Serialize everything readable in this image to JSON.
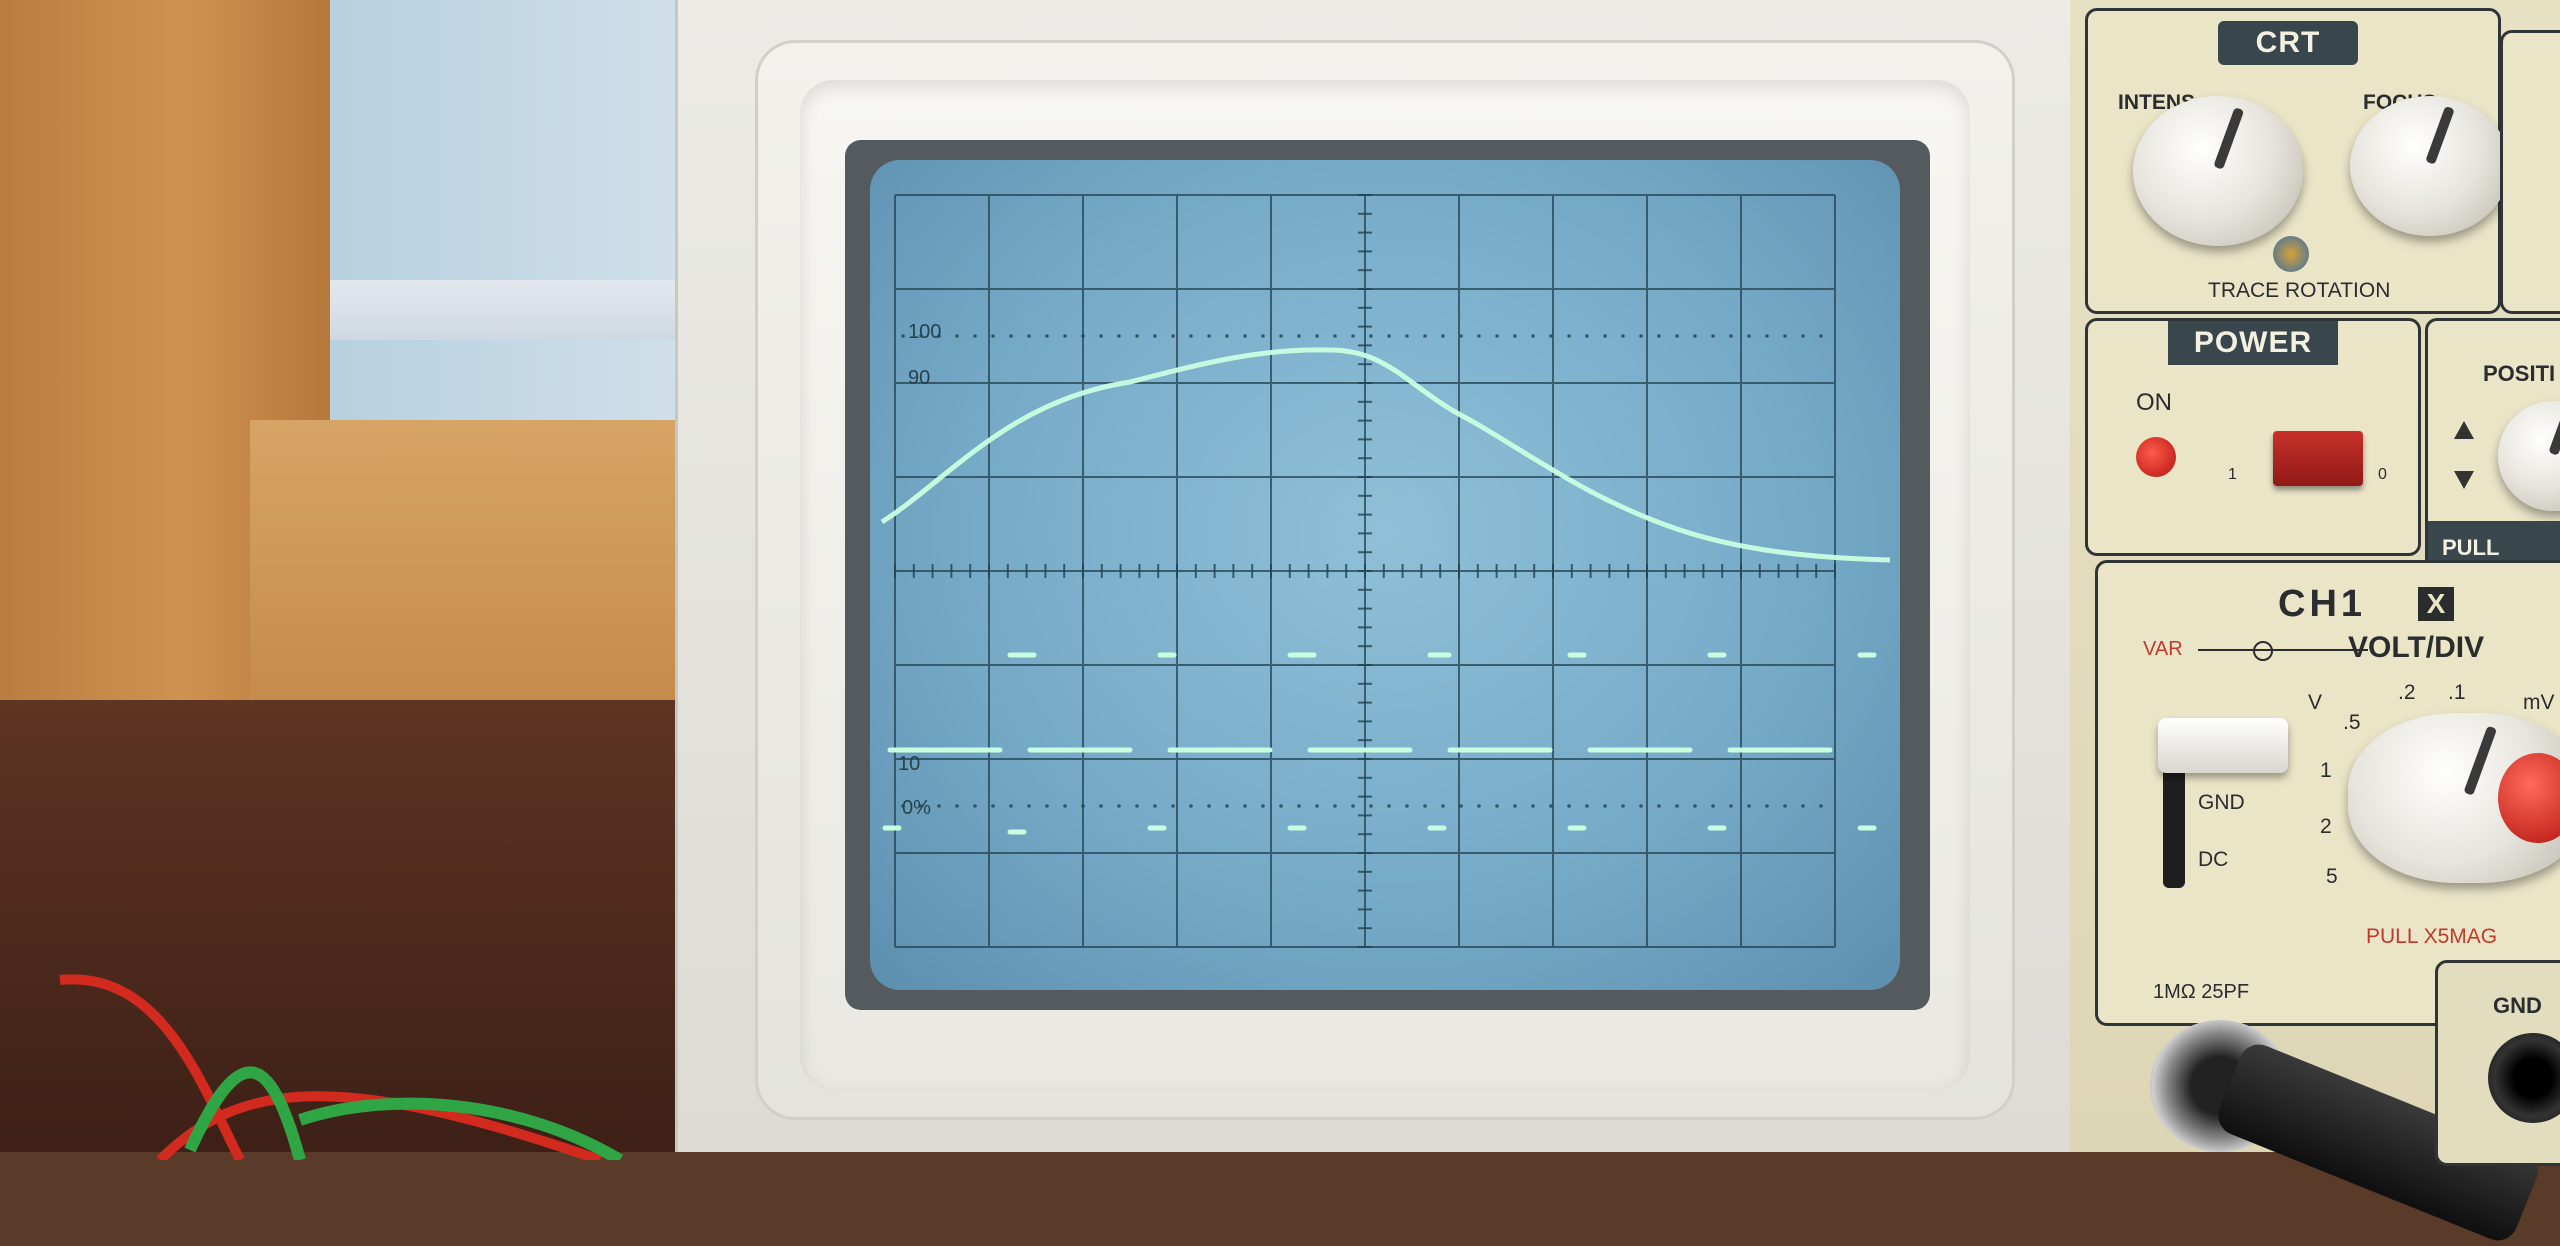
{
  "screen": {
    "graticule_labels": {
      "top_percent": "100",
      "upper_percent": "90",
      "lower_percent": "10",
      "bottom_percent": "0%"
    }
  },
  "panel": {
    "crt": {
      "title": "CRT",
      "intensity_label": "INTENS",
      "focus_label": "FOCUS",
      "trace_rotation_label": "TRACE ROTATION"
    },
    "power": {
      "title": "POWER",
      "on_label": "ON",
      "pos_1": "1",
      "pos_0": "0"
    },
    "position": {
      "title": "POSITI",
      "pull_label": "PULL"
    },
    "ch1": {
      "title": "CH1",
      "x_badge": "X",
      "var_label": "VAR",
      "volt_div_label": "VOLT/DIV",
      "scale_v": "V",
      "scale_mv": "mV",
      "scale_values": [
        ".5",
        ".2",
        ".1",
        "1",
        "2",
        "5"
      ],
      "gnd_label": "GND",
      "dc_label": "DC",
      "pull_x5mag_label": "PULL X5MAG",
      "input_spec": "1MΩ 25PF"
    },
    "gnd_terminal_label": "GND"
  },
  "colors": {
    "phosphor": "#c8ffe0",
    "panel_title_bg": "#39464c",
    "var_red": "#c0392b"
  }
}
